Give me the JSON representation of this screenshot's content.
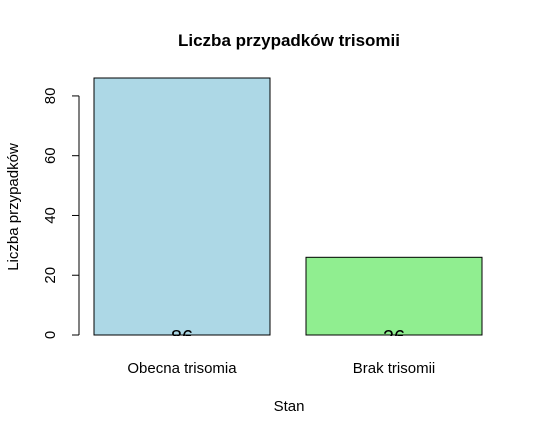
{
  "chart_data": {
    "type": "bar",
    "title": "Liczba przypadków trisomii",
    "xlabel": "Stan",
    "ylabel": "Liczba przypadków",
    "categories": [
      "Obecna trisomia",
      "Brak trisomii"
    ],
    "values": [
      86,
      26
    ],
    "bar_colors": [
      "#ADD8E6",
      "#90EE90"
    ],
    "data_labels": [
      "86",
      "26"
    ],
    "yticks": [
      0,
      20,
      40,
      60,
      80
    ],
    "ylim": [
      0,
      86
    ],
    "grid": false,
    "legend": "none"
  }
}
